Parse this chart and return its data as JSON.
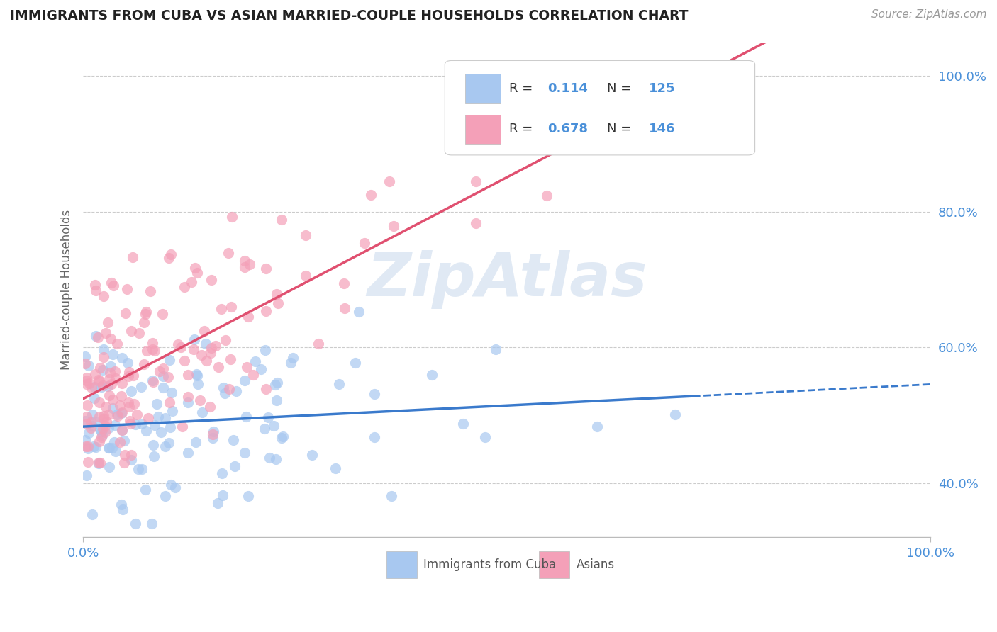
{
  "title": "IMMIGRANTS FROM CUBA VS ASIAN MARRIED-COUPLE HOUSEHOLDS CORRELATION CHART",
  "source": "Source: ZipAtlas.com",
  "ylabel": "Married-couple Households",
  "legend_labels": [
    "Immigrants from Cuba",
    "Asians"
  ],
  "legend_r": [
    0.114,
    0.678
  ],
  "legend_n": [
    125,
    146
  ],
  "blue_color": "#A8C8F0",
  "pink_color": "#F4A0B8",
  "blue_line_color": "#3A7ACC",
  "pink_line_color": "#E05070",
  "blue_text_color": "#4A90D9",
  "watermark_color": "#C8D8EC",
  "watermark": "ZipAtlas",
  "xmin": 0.0,
  "xmax": 1.0,
  "ymin": 0.32,
  "ymax": 1.05,
  "ytick_vals": [
    0.4,
    0.6,
    0.8,
    1.0
  ],
  "ytick_labels": [
    "40.0%",
    "60.0%",
    "80.0%",
    "100.0%"
  ],
  "seed": 99
}
